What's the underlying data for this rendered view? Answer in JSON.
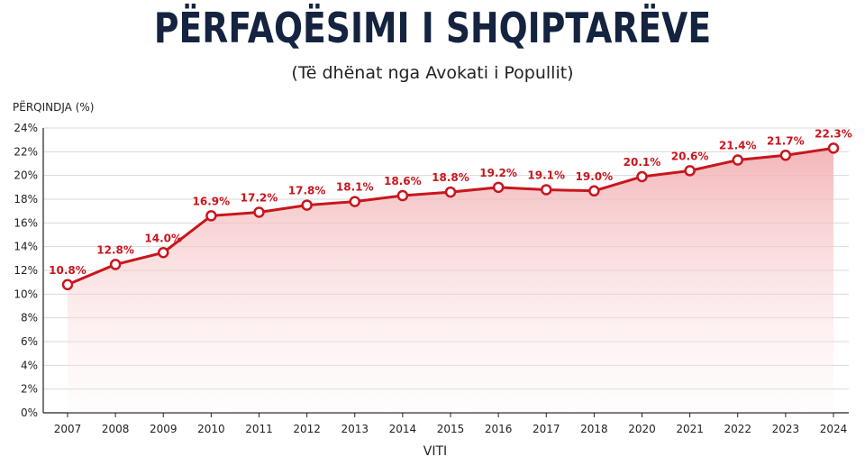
{
  "title": "PËRFAQËSIMI I SHQIPTARËVE",
  "subtitle": "(Të dhënat nga Avokati i Popullit)",
  "chart_data": {
    "type": "area",
    "title": "PËRFAQËSIMI I SHQIPTARËVE",
    "subtitle": "(Të dhënat nga Avokati i Popullit)",
    "xlabel": "VITI",
    "ylabel": "PËRQINDJA (%)",
    "categories": [
      "2007",
      "2008",
      "2009",
      "2010",
      "2011",
      "2012",
      "2013",
      "2014",
      "2015",
      "2016",
      "2017",
      "2018",
      "2020",
      "2021",
      "2022",
      "2023",
      "2024"
    ],
    "values": [
      10.8,
      12.8,
      14.0,
      16.9,
      17.2,
      17.8,
      18.1,
      18.6,
      18.8,
      19.2,
      19.1,
      19.0,
      20.1,
      20.6,
      21.4,
      21.7,
      22.3
    ],
    "point_positions": [
      10.8,
      12.5,
      13.5,
      16.6,
      16.9,
      17.5,
      17.8,
      18.3,
      18.6,
      19.0,
      18.8,
      18.7,
      19.9,
      20.4,
      21.3,
      21.7,
      22.3
    ],
    "data_labels": [
      "10.8%",
      "12.8%",
      "14.0%",
      "16.9%",
      "17.2%",
      "17.8%",
      "18.1%",
      "18.6%",
      "18.8%",
      "19.2%",
      "19.1%",
      "19.0%",
      "20.1%",
      "20.6%",
      "21.4%",
      "21.7%",
      "22.3%"
    ],
    "yticks": [
      "0%",
      "2%",
      "4%",
      "6%",
      "8%",
      "10%",
      "12%",
      "14%",
      "16%",
      "18%",
      "20%",
      "22%",
      "24%"
    ],
    "ylim": [
      0,
      24
    ],
    "grid": "horizontal",
    "line_color": "#c8161d",
    "fill_color": "#f5c6c8",
    "title_color": "#14233f"
  }
}
